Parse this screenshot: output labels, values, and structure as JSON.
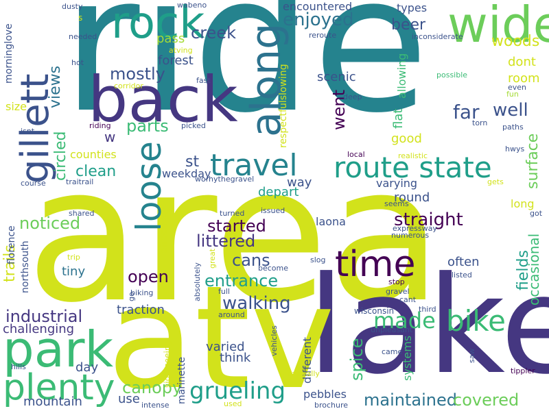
{
  "palette": {
    "yellow": "#d2e21b",
    "lime": "#a5db36",
    "green": "#6ccd5a",
    "mint": "#3bbb75",
    "teal": "#25838e",
    "cyan": "#1f9e89",
    "blue": "#2c728e",
    "slate": "#3b528b",
    "indigo": "#453781",
    "dark": "#440154"
  },
  "words": [
    {
      "key": "area",
      "text": "area",
      "color": "#d2e21b"
    },
    {
      "key": "ride",
      "text": "ride",
      "color": "#25838e"
    },
    {
      "key": "lake",
      "text": "lake",
      "color": "#453781"
    },
    {
      "key": "atv",
      "text": "atv",
      "color": "#d2e21b"
    },
    {
      "key": "back",
      "text": "back",
      "color": "#453781"
    },
    {
      "key": "wide",
      "text": "wide",
      "color": "#6ccd5a"
    },
    {
      "key": "rock",
      "text": "rock",
      "color": "#1f9e89"
    },
    {
      "key": "park",
      "text": "park",
      "color": "#3bbb75"
    },
    {
      "key": "along",
      "text": "along",
      "color": "#2c728e"
    },
    {
      "key": "gillett",
      "text": "gillett",
      "color": "#3b528b"
    },
    {
      "key": "loose",
      "text": "loose",
      "color": "#25838e"
    },
    {
      "key": "time",
      "text": "time",
      "color": "#440154"
    },
    {
      "key": "plenty",
      "text": "plenty",
      "color": "#3bbb75"
    },
    {
      "key": "travel",
      "text": "travel",
      "color": "#25838e"
    },
    {
      "key": "route_state",
      "text": "route state",
      "color": "#1f9e89"
    },
    {
      "key": "bike",
      "text": "bike",
      "color": "#3bbb75"
    },
    {
      "key": "grueling",
      "text": "grueling",
      "color": "#1f9e89"
    },
    {
      "key": "made",
      "text": "made",
      "color": "#3bbb75"
    },
    {
      "key": "enjoyed",
      "text": "enjoyed",
      "color": "#2c728e"
    },
    {
      "key": "creek",
      "text": "creek",
      "color": "#3b528b"
    },
    {
      "key": "parts",
      "text": "parts",
      "color": "#3bbb75"
    },
    {
      "key": "mostly",
      "text": "mostly",
      "color": "#3b528b"
    },
    {
      "key": "walking",
      "text": "walking",
      "color": "#3b528b"
    },
    {
      "key": "entrance",
      "text": "entrance",
      "color": "#1f9e89"
    },
    {
      "key": "littered",
      "text": "littered",
      "color": "#453781"
    },
    {
      "key": "started",
      "text": "started",
      "color": "#440154"
    },
    {
      "key": "open",
      "text": "open",
      "color": "#440154"
    },
    {
      "key": "cans",
      "text": "cans",
      "color": "#3b528b"
    },
    {
      "key": "maintained",
      "text": "maintained",
      "color": "#2c728e"
    },
    {
      "key": "covered",
      "text": "covered",
      "color": "#6ccd5a"
    },
    {
      "key": "canopy",
      "text": "canopy",
      "color": "#6ccd5a"
    },
    {
      "key": "straight",
      "text": "straight",
      "color": "#440154"
    },
    {
      "key": "noticed",
      "text": "noticed",
      "color": "#6ccd5a"
    },
    {
      "key": "clean",
      "text": "clean",
      "color": "#1f9e89"
    },
    {
      "key": "industrial",
      "text": "industrial",
      "color": "#453781"
    },
    {
      "key": "challenging",
      "text": "challenging",
      "color": "#453781"
    },
    {
      "key": "far",
      "text": "far",
      "color": "#3b528b"
    },
    {
      "key": "well",
      "text": "well",
      "color": "#3b528b"
    },
    {
      "key": "woods",
      "text": "woods",
      "color": "#d2e21b"
    },
    {
      "key": "beer",
      "text": "beer",
      "color": "#3b528b"
    },
    {
      "key": "surface",
      "text": "surface",
      "color": "#6ccd5a"
    },
    {
      "key": "fields",
      "text": "fields",
      "color": "#1f9e89"
    },
    {
      "key": "occasional",
      "text": "occasional",
      "color": "#3bbb75"
    },
    {
      "key": "circled",
      "text": "circled",
      "color": "#3bbb75"
    },
    {
      "key": "views",
      "text": "views",
      "color": "#2c728e"
    },
    {
      "key": "went",
      "text": "went",
      "color": "#440154"
    },
    {
      "key": "spice",
      "text": "spice",
      "color": "#3bbb75"
    },
    {
      "key": "trails",
      "text": "trails",
      "color": "#d2e21b"
    },
    {
      "key": "often",
      "text": "often",
      "color": "#3b528b"
    },
    {
      "key": "varied",
      "text": "varied",
      "color": "#3b528b"
    },
    {
      "key": "mountain",
      "text": "mountain",
      "color": "#3b528b"
    },
    {
      "key": "day",
      "text": "day",
      "color": "#3b528b"
    },
    {
      "key": "use",
      "text": "use",
      "color": "#3b528b"
    },
    {
      "key": "traction",
      "text": "traction",
      "color": "#3b528b"
    },
    {
      "key": "think",
      "text": "think",
      "color": "#3b528b"
    },
    {
      "key": "pebbles",
      "text": "pebbles",
      "color": "#3b528b"
    },
    {
      "key": "tiny",
      "text": "tiny",
      "color": "#2c728e"
    },
    {
      "key": "st",
      "text": "st",
      "color": "#3b528b"
    },
    {
      "key": "w",
      "text": "w",
      "color": "#453781"
    },
    {
      "key": "forest",
      "text": "forest",
      "color": "#3b528b"
    },
    {
      "key": "scenic",
      "text": "scenic",
      "color": "#3b528b"
    },
    {
      "key": "pass",
      "text": "pass",
      "color": "#a5db36"
    },
    {
      "key": "types",
      "text": "types",
      "color": "#3b528b"
    },
    {
      "key": "encountered",
      "text": "encountered",
      "color": "#3b528b"
    },
    {
      "key": "good",
      "text": "good",
      "color": "#d2e21b"
    },
    {
      "key": "dont",
      "text": "dont",
      "color": "#d2e21b"
    },
    {
      "key": "room",
      "text": "room",
      "color": "#d2e21b"
    },
    {
      "key": "long",
      "text": "long",
      "color": "#d2e21b"
    },
    {
      "key": "round",
      "text": "round",
      "color": "#3b528b"
    },
    {
      "key": "depart",
      "text": "depart",
      "color": "#1f9e89"
    },
    {
      "key": "way",
      "text": "way",
      "color": "#3b528b"
    },
    {
      "key": "varying",
      "text": "varying",
      "color": "#3b528b"
    },
    {
      "key": "laona",
      "text": "laona",
      "color": "#3b528b"
    },
    {
      "key": "weekday",
      "text": "weekday",
      "color": "#3b528b"
    },
    {
      "key": "counties",
      "text": "counties",
      "color": "#d2e21b"
    },
    {
      "key": "size",
      "text": "size",
      "color": "#d2e21b"
    },
    {
      "key": "flat",
      "text": "flat",
      "color": "#3bbb75"
    },
    {
      "key": "allowing",
      "text": "allowing",
      "color": "#3bbb75"
    },
    {
      "key": "different",
      "text": "different",
      "color": "#3b528b"
    },
    {
      "key": "systems",
      "text": "systems",
      "color": "#3bbb75"
    },
    {
      "key": "respectfulslowing",
      "text": "respectfulslowing",
      "color": "#d2e21b"
    },
    {
      "key": "florence",
      "text": "florence",
      "color": "#3b528b"
    },
    {
      "key": "northsouth",
      "text": "northsouth",
      "color": "#3b528b"
    },
    {
      "key": "effective",
      "text": "effective",
      "color": "#d2e21b"
    },
    {
      "key": "marinette",
      "text": "marinette",
      "color": "#3b528b"
    },
    {
      "key": "wisconsin",
      "text": "wisconsin",
      "color": "#3b528b"
    },
    {
      "key": "morninglove",
      "text": "morninglove",
      "color": "#3b528b"
    },
    {
      "key": "dusty",
      "text": "dusty",
      "color": "#3b528b"
    },
    {
      "key": "s",
      "text": "s",
      "color": "#d2e21b"
    },
    {
      "key": "needed",
      "text": "needed",
      "color": "#3b528b"
    },
    {
      "key": "wabeno",
      "text": "wabeno",
      "color": "#3b528b"
    },
    {
      "key": "reroute",
      "text": "reroute",
      "color": "#3b528b"
    },
    {
      "key": "inconsiderate",
      "text": "inconsiderate",
      "color": "#3b528b"
    },
    {
      "key": "atving",
      "text": "atving",
      "color": "#d2e21b"
    },
    {
      "key": "hot",
      "text": "hot",
      "color": "#3b528b"
    },
    {
      "key": "corridor",
      "text": "corridor",
      "color": "#d2e21b"
    },
    {
      "key": "fast",
      "text": "fast",
      "color": "#3b528b"
    },
    {
      "key": "possible",
      "text": "possible",
      "color": "#3bbb75"
    },
    {
      "key": "even",
      "text": "even",
      "color": "#3b528b"
    },
    {
      "key": "fun",
      "text": "fun",
      "color": "#a5db36"
    },
    {
      "key": "deep",
      "text": "deep",
      "color": "#3b528b"
    },
    {
      "key": "torn",
      "text": "torn",
      "color": "#3b528b"
    },
    {
      "key": "isnt",
      "text": "isnt",
      "color": "#3b528b"
    },
    {
      "key": "riding",
      "text": "riding",
      "color": "#440154"
    },
    {
      "key": "picked",
      "text": "picked",
      "color": "#3b528b"
    },
    {
      "key": "paths",
      "text": "paths",
      "color": "#3b528b"
    },
    {
      "key": "hwys",
      "text": "hwys",
      "color": "#3b528b"
    },
    {
      "key": "local",
      "text": "local",
      "color": "#440154"
    },
    {
      "key": "realistic",
      "text": "realistic",
      "color": "#d2e21b"
    },
    {
      "key": "course",
      "text": "course",
      "color": "#3b528b"
    },
    {
      "key": "traitrail",
      "text": "traitrail",
      "color": "#3b528b"
    },
    {
      "key": "worhythegravel",
      "text": "worhythegravel",
      "color": "#3b528b"
    },
    {
      "key": "gets",
      "text": "gets",
      "color": "#d2e21b"
    },
    {
      "key": "seems",
      "text": "seems",
      "color": "#3b528b"
    },
    {
      "key": "shared",
      "text": "shared",
      "color": "#3b528b"
    },
    {
      "key": "turned",
      "text": "turned",
      "color": "#3b528b"
    },
    {
      "key": "issued",
      "text": "issued",
      "color": "#3b528b"
    },
    {
      "key": "got",
      "text": "got",
      "color": "#3b528b"
    },
    {
      "key": "expressway",
      "text": "expressway",
      "color": "#3b528b"
    },
    {
      "key": "numerous",
      "text": "numerous",
      "color": "#3b528b"
    },
    {
      "key": "trip",
      "text": "trip",
      "color": "#d2e21b"
    },
    {
      "key": "great",
      "text": "great",
      "color": "#d2e21b"
    },
    {
      "key": "slog",
      "text": "slog",
      "color": "#3b528b"
    },
    {
      "key": "become",
      "text": "become",
      "color": "#3b528b"
    },
    {
      "key": "listed",
      "text": "listed",
      "color": "#3b528b"
    },
    {
      "key": "full",
      "text": "full",
      "color": "#3b528b"
    },
    {
      "key": "absolutely",
      "text": "absolutely",
      "color": "#3b528b"
    },
    {
      "key": "stop",
      "text": "stop",
      "color": "#440154"
    },
    {
      "key": "gravel",
      "text": "gravel",
      "color": "#3b528b"
    },
    {
      "key": "cant",
      "text": "cant",
      "color": "#3b528b"
    },
    {
      "key": "third",
      "text": "third",
      "color": "#3b528b"
    },
    {
      "key": "go",
      "text": "go",
      "color": "#3b528b"
    },
    {
      "key": "biking",
      "text": "biking",
      "color": "#3b528b"
    },
    {
      "key": "around",
      "text": "around",
      "color": "#3b528b"
    },
    {
      "key": "hills",
      "text": "hills",
      "color": "#3b528b"
    },
    {
      "key": "vehicles",
      "text": "vehicles",
      "color": "#3b528b"
    },
    {
      "key": "unpleasant",
      "text": "unpleasant",
      "color": "#3b528b"
    },
    {
      "key": "came",
      "text": "came",
      "color": "#3b528b"
    },
    {
      "key": "saw",
      "text": "saw",
      "color": "#3b528b"
    },
    {
      "key": "sightseeing",
      "text": "sightseeing",
      "color": "#d2e21b"
    },
    {
      "key": "intense",
      "text": "intense",
      "color": "#3b528b"
    },
    {
      "key": "used",
      "text": "used",
      "color": "#d2e21b"
    },
    {
      "key": "brochure",
      "text": "brochure",
      "color": "#3b528b"
    },
    {
      "key": "basically",
      "text": "basically",
      "color": "#d2e21b"
    },
    {
      "key": "tippler",
      "text": "tippler",
      "color": "#440154"
    }
  ]
}
